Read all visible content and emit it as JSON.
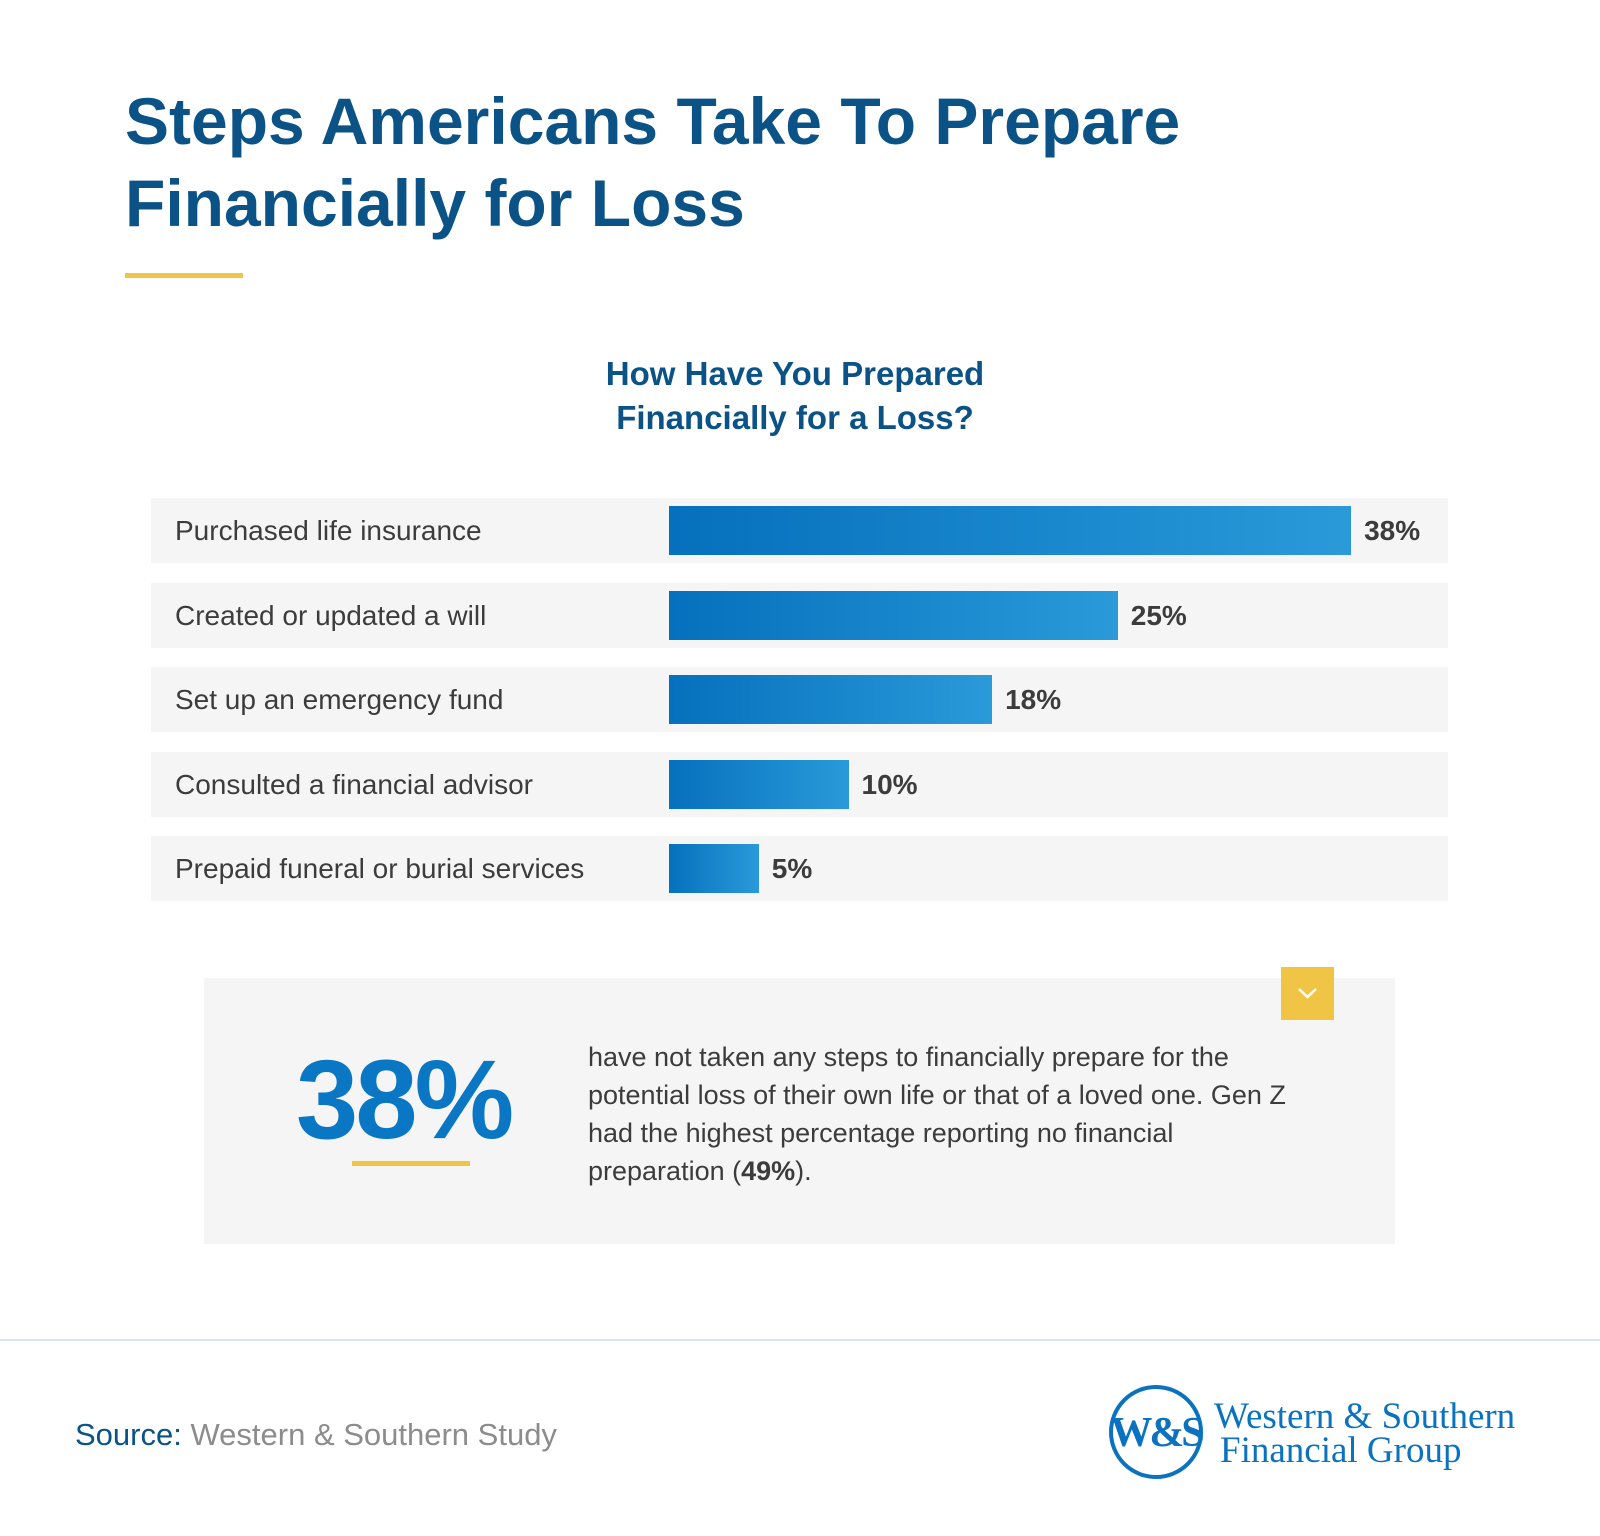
{
  "header": {
    "title_line1": "Steps Americans Take To Prepare",
    "title_line2": "Financially for Loss"
  },
  "chart_data": {
    "type": "bar",
    "orientation": "horizontal",
    "title": "How Have You Prepared Financially for a Loss?",
    "title_line1": "How Have You Prepared",
    "title_line2": "Financially for a Loss?",
    "categories": [
      "Purchased life insurance",
      "Created or updated a will",
      "Set up an emergency fund",
      "Consulted a financial advisor",
      "Prepaid funeral or burial services"
    ],
    "values": [
      38,
      25,
      18,
      10,
      5
    ],
    "labels": [
      "38%",
      "25%",
      "18%",
      "10%",
      "5%"
    ],
    "unit": "%",
    "grid": false,
    "colors": {
      "bar_start": "#0570bd",
      "bar_end": "#2a9ad9",
      "row_bg": "#f5f5f5"
    }
  },
  "callout": {
    "stat": "38%",
    "text_before": "have not taken any steps to financially prepare for the potential loss of their own life or that of a loved one. Gen Z had the highest percentage reporting no financial preparation (",
    "text_bold": "49%",
    "text_after": ").",
    "icon": "chevron-down-icon"
  },
  "footer": {
    "source_label": "Source:",
    "source_value": "Western & Southern Study",
    "logo_monogram": "W&S",
    "logo_line1": "Western & Southern",
    "logo_line2": "Financial Group"
  },
  "colors": {
    "title": "#0b5287",
    "accent_yellow": "#f0c445",
    "stat_blue": "#0a77c4",
    "logo_blue": "#0a72bf"
  }
}
